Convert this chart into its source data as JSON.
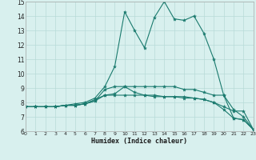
{
  "title": "",
  "xlabel": "Humidex (Indice chaleur)",
  "xlim": [
    0,
    23
  ],
  "ylim": [
    6,
    15
  ],
  "yticks": [
    6,
    7,
    8,
    9,
    10,
    11,
    12,
    13,
    14,
    15
  ],
  "xticks": [
    0,
    1,
    2,
    3,
    4,
    5,
    6,
    7,
    8,
    9,
    10,
    11,
    12,
    13,
    14,
    15,
    16,
    17,
    18,
    19,
    20,
    21,
    22,
    23
  ],
  "bg_color": "#d8f0ee",
  "grid_color": "#b8dbd8",
  "line_color": "#1a7a6e",
  "lines": [
    {
      "x": [
        0,
        1,
        2,
        3,
        4,
        5,
        6,
        7,
        8,
        9,
        10,
        11,
        12,
        13,
        14,
        15,
        16,
        17,
        18,
        19,
        20,
        21,
        22,
        23
      ],
      "y": [
        7.7,
        7.7,
        7.7,
        7.7,
        7.8,
        7.8,
        7.9,
        8.2,
        8.5,
        8.5,
        8.5,
        8.5,
        8.5,
        8.5,
        8.4,
        8.4,
        8.4,
        8.3,
        8.2,
        8.0,
        7.7,
        7.4,
        7.4,
        6.1
      ]
    },
    {
      "x": [
        0,
        1,
        2,
        3,
        4,
        5,
        6,
        7,
        8,
        9,
        10,
        11,
        12,
        13,
        14,
        15,
        16,
        17,
        18,
        19,
        20,
        21,
        22,
        23
      ],
      "y": [
        7.7,
        7.7,
        7.7,
        7.7,
        7.8,
        7.8,
        7.9,
        8.1,
        8.5,
        8.6,
        9.1,
        8.7,
        8.5,
        8.4,
        8.4,
        8.4,
        8.3,
        8.3,
        8.2,
        8.0,
        7.5,
        6.9,
        6.8,
        6.1
      ]
    },
    {
      "x": [
        0,
        1,
        2,
        3,
        4,
        5,
        6,
        7,
        8,
        9,
        10,
        11,
        12,
        13,
        14,
        15,
        16,
        17,
        18,
        19,
        20,
        21,
        22,
        23
      ],
      "y": [
        7.7,
        7.7,
        7.7,
        7.7,
        7.8,
        7.8,
        7.9,
        8.1,
        8.9,
        9.1,
        9.1,
        9.1,
        9.1,
        9.1,
        9.1,
        9.1,
        8.9,
        8.9,
        8.7,
        8.5,
        8.5,
        6.9,
        6.8,
        6.1
      ]
    },
    {
      "x": [
        0,
        1,
        2,
        3,
        4,
        5,
        6,
        7,
        8,
        9,
        10,
        11,
        12,
        13,
        14,
        15,
        16,
        17,
        18,
        19,
        20,
        21,
        22,
        23
      ],
      "y": [
        7.7,
        7.7,
        7.7,
        7.7,
        7.8,
        7.9,
        8.0,
        8.3,
        9.1,
        10.5,
        14.3,
        13.0,
        11.8,
        13.9,
        15.0,
        13.8,
        13.7,
        14.0,
        12.8,
        11.0,
        8.5,
        7.5,
        7.0,
        6.1
      ]
    }
  ]
}
